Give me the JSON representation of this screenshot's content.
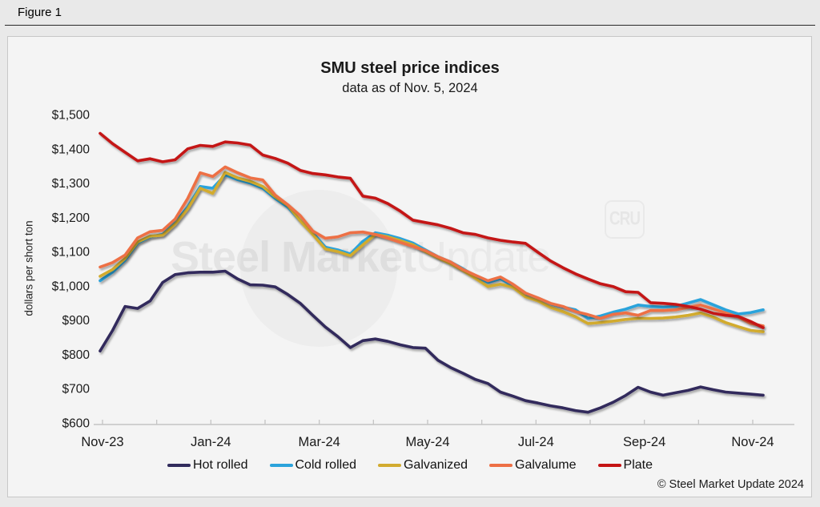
{
  "figure": {
    "label": "Figure 1"
  },
  "chart": {
    "title": "SMU steel price indices",
    "subtitle": "data as of Nov. 5, 2024",
    "ylabel": "dollars per short ton",
    "watermark": {
      "bold": "Steel Market",
      "light": "Update",
      "badge": "CRU"
    },
    "copyright": "© Steel Market Update 2024"
  },
  "chart_data": {
    "type": "line",
    "title": "SMU steel price indices",
    "subtitle": "data as of Nov. 5, 2024",
    "xlabel": "",
    "ylabel": "dollars per short ton",
    "ylim": [
      600,
      1500
    ],
    "y_tick_step": 100,
    "y_tick_prefix": "$",
    "grid": false,
    "legend_position": "bottom",
    "x_frequency": "weekly",
    "x_axis": {
      "tick_months": [
        "Nov-23",
        "Dec-23",
        "Jan-24",
        "Feb-24",
        "Mar-24",
        "Apr-24",
        "May-24",
        "Jun-24",
        "Jul-24",
        "Aug-24",
        "Sep-24",
        "Oct-24",
        "Nov-24"
      ],
      "labels": [
        "Nov-23",
        "Jan-24",
        "Mar-24",
        "May-24",
        "Jul-24",
        "Sep-24",
        "Nov-24"
      ],
      "labeled_every_n_months": 2
    },
    "series": [
      {
        "key": "hot-rolled",
        "name": "Hot rolled",
        "color": "#312b5c",
        "values": [
          810,
          870,
          940,
          934,
          956,
          1010,
          1033,
          1038,
          1040,
          1040,
          1043,
          1020,
          1003,
          1002,
          997,
          975,
          949,
          914,
          880,
          852,
          820,
          840,
          845,
          838,
          828,
          820,
          818,
          783,
          762,
          745,
          727,
          715,
          690,
          678,
          665,
          658,
          650,
          644,
          636,
          631,
          644,
          660,
          680,
          704,
          690,
          681,
          688,
          695,
          705,
          697,
          690,
          687,
          684,
          681
        ]
      },
      {
        "key": "cold-rolled",
        "name": "Cold rolled",
        "color": "#2ba3db",
        "values": [
          1015,
          1040,
          1075,
          1125,
          1143,
          1150,
          1185,
          1230,
          1290,
          1285,
          1324,
          1310,
          1300,
          1285,
          1255,
          1230,
          1190,
          1155,
          1113,
          1105,
          1093,
          1130,
          1155,
          1148,
          1138,
          1125,
          1105,
          1085,
          1070,
          1050,
          1028,
          1010,
          1021,
          1000,
          976,
          964,
          948,
          938,
          930,
          905,
          912,
          923,
          932,
          944,
          940,
          938,
          940,
          950,
          960,
          945,
          930,
          918,
          922,
          930
        ]
      },
      {
        "key": "galvanized",
        "name": "Galvanized",
        "color": "#d2ab2f",
        "values": [
          1028,
          1048,
          1080,
          1128,
          1145,
          1148,
          1180,
          1225,
          1285,
          1270,
          1331,
          1315,
          1305,
          1290,
          1260,
          1235,
          1190,
          1150,
          1108,
          1100,
          1088,
          1120,
          1150,
          1143,
          1132,
          1120,
          1100,
          1082,
          1065,
          1045,
          1022,
          998,
          1005,
          996,
          968,
          956,
          937,
          925,
          910,
          890,
          893,
          897,
          902,
          905,
          905,
          906,
          909,
          914,
          921,
          909,
          893,
          881,
          870,
          866
        ]
      },
      {
        "key": "galvalume",
        "name": "Galvalume",
        "color": "#ed6f45",
        "values": [
          1055,
          1068,
          1090,
          1140,
          1158,
          1162,
          1195,
          1255,
          1330,
          1319,
          1347,
          1330,
          1315,
          1309,
          1265,
          1237,
          1205,
          1160,
          1139,
          1143,
          1155,
          1157,
          1150,
          1139,
          1127,
          1115,
          1103,
          1085,
          1070,
          1048,
          1031,
          1015,
          1026,
          1005,
          979,
          965,
          949,
          940,
          925,
          916,
          905,
          917,
          921,
          914,
          928,
          928,
          930,
          937,
          944,
          933,
          921,
          909,
          890,
          883
        ]
      },
      {
        "key": "plate",
        "name": "Plate",
        "color": "#c41414",
        "values": [
          1445,
          1415,
          1390,
          1365,
          1371,
          1362,
          1368,
          1400,
          1410,
          1407,
          1420,
          1417,
          1411,
          1382,
          1372,
          1358,
          1337,
          1328,
          1324,
          1318,
          1314,
          1262,
          1256,
          1240,
          1218,
          1192,
          1185,
          1178,
          1168,
          1155,
          1150,
          1140,
          1133,
          1128,
          1124,
          1098,
          1073,
          1053,
          1035,
          1020,
          1006,
          998,
          983,
          981,
          951,
          949,
          946,
          940,
          932,
          920,
          914,
          911,
          896,
          878
        ]
      }
    ]
  }
}
